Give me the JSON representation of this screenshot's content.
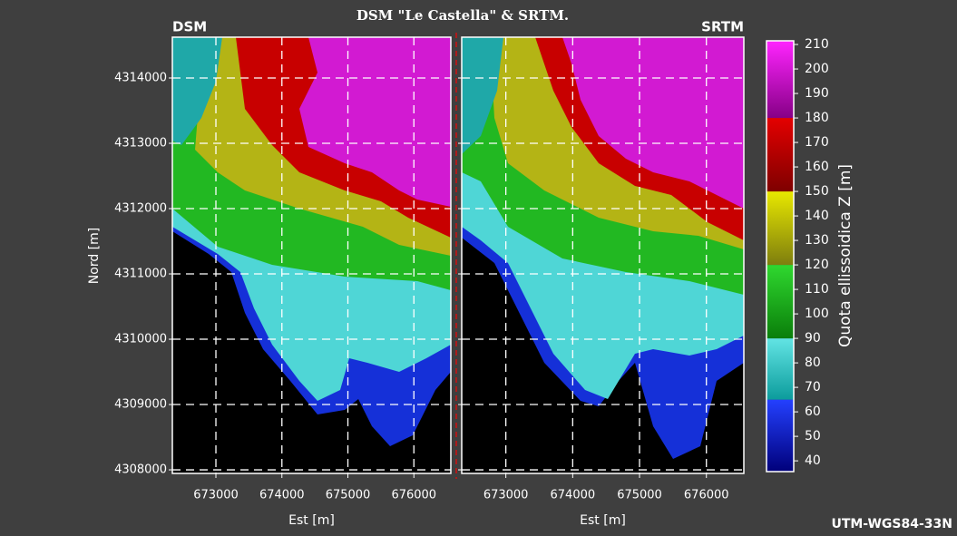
{
  "chart_data": {
    "type": "map",
    "title": "DSM \"Le Castella\" & SRTM.",
    "panels": [
      {
        "label": "DSM"
      },
      {
        "label": "SRTM"
      }
    ],
    "xlabel": "Est [m]",
    "ylabel": "Nord [m]",
    "xlim": [
      672340,
      676560
    ],
    "xticks": [
      673000,
      674000,
      675000,
      676000
    ],
    "ylim": [
      4307945,
      4314625
    ],
    "yticks": [
      4308000,
      4309000,
      4310000,
      4311000,
      4312000,
      4313000,
      4314000
    ],
    "grid": true,
    "colorbar": {
      "label": "Quota ellissoidica Z [m]",
      "lim": [
        35.6,
        211.5
      ],
      "ticks": [
        40,
        50,
        60,
        70,
        80,
        90,
        100,
        110,
        120,
        130,
        140,
        150,
        160,
        170,
        180,
        190,
        200,
        210
      ],
      "bands": [
        {
          "range": [
            35.6,
            65
          ],
          "colors": [
            "#00007a",
            "#2440ff"
          ]
        },
        {
          "range": [
            65,
            90
          ],
          "colors": [
            "#0c9c9c",
            "#62e4e4"
          ]
        },
        {
          "range": [
            90,
            120
          ],
          "colors": [
            "#0a7e0a",
            "#2fd82f"
          ]
        },
        {
          "range": [
            120,
            150
          ],
          "colors": [
            "#7e7e0e",
            "#e8e800"
          ]
        },
        {
          "range": [
            150,
            180
          ],
          "colors": [
            "#7e0000",
            "#e40000"
          ]
        },
        {
          "range": [
            180,
            211.5
          ],
          "colors": [
            "#860086",
            "#ff24ff"
          ]
        }
      ]
    },
    "crs_label": "UTM-WGS84-33N"
  }
}
